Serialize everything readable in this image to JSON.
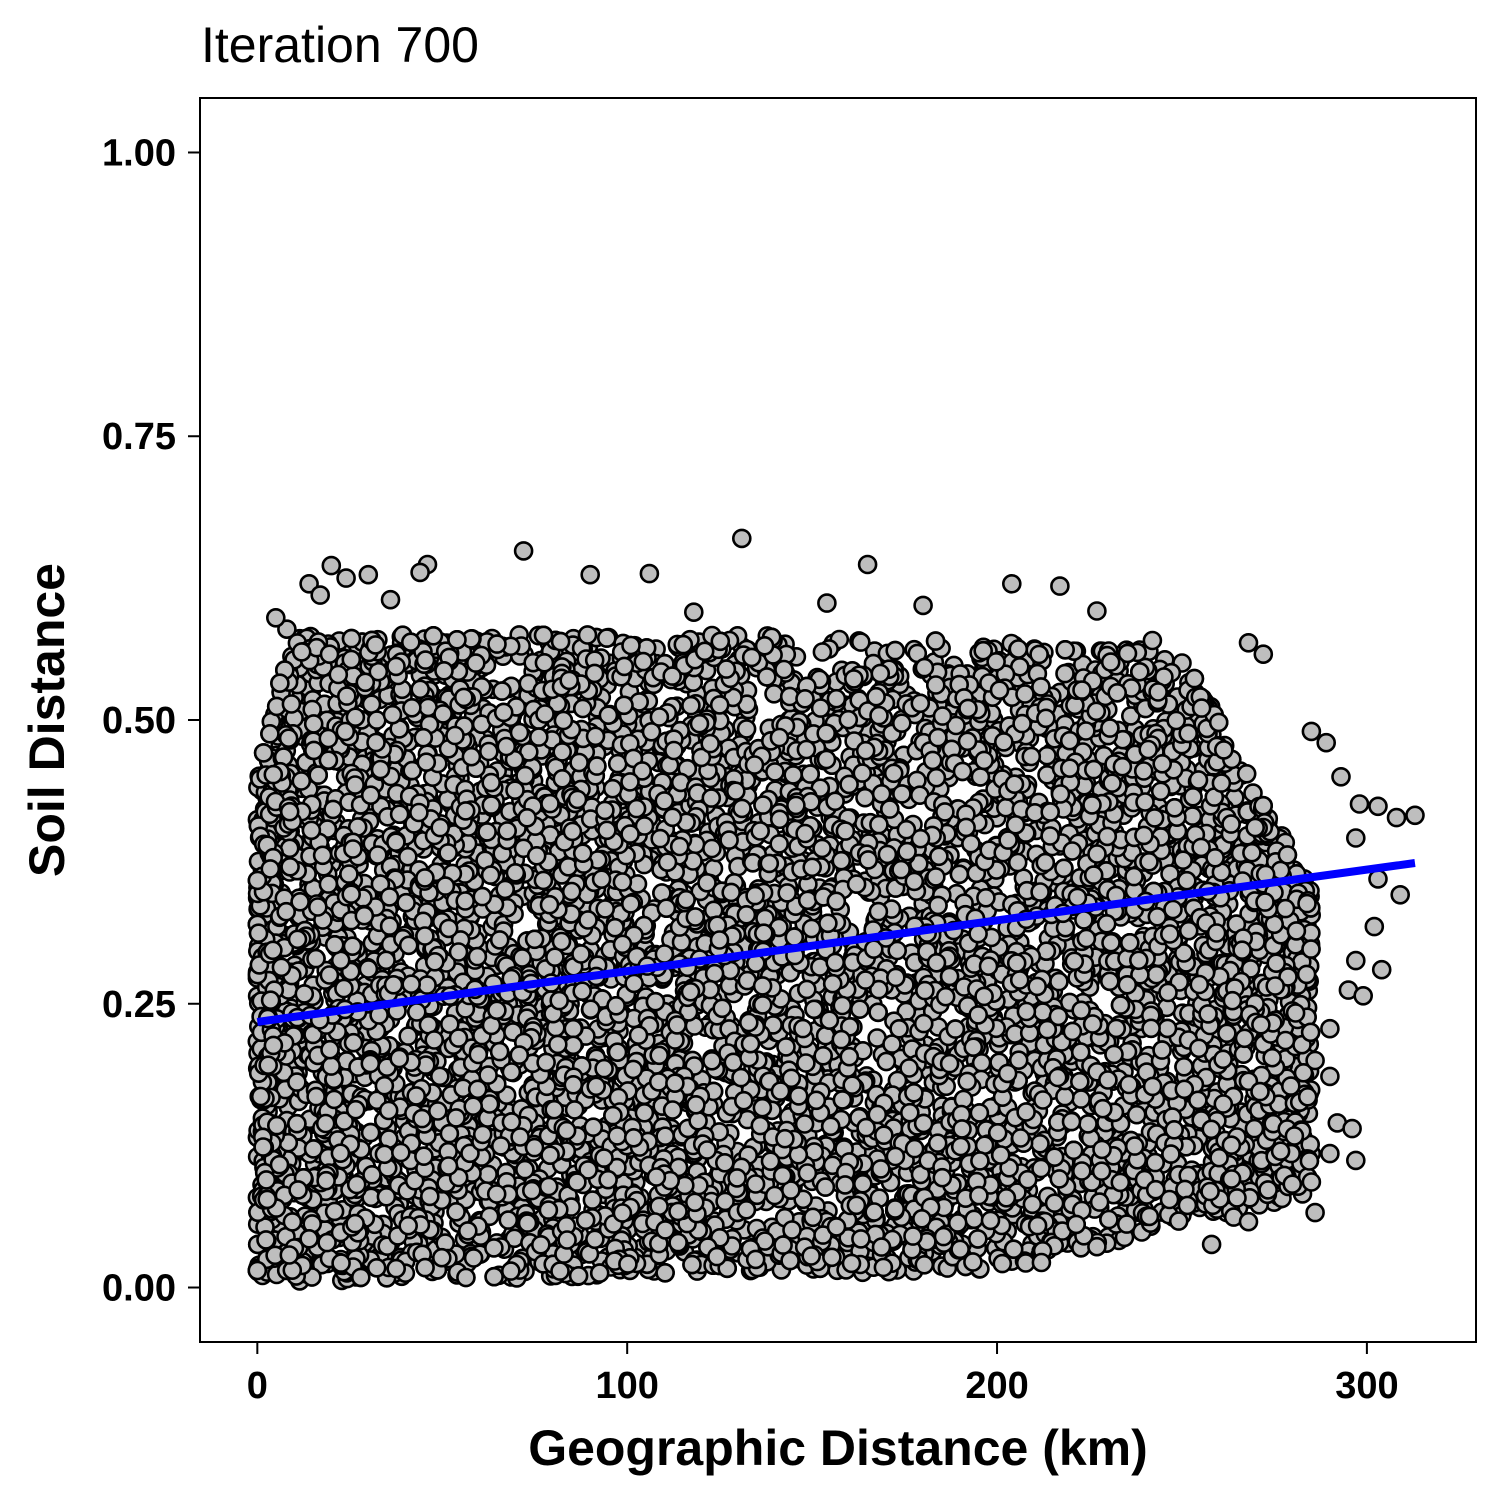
{
  "chart_data": {
    "type": "scatter",
    "title": "Iteration 700",
    "xlabel": "Geographic Distance (km)",
    "ylabel": "Soil Distance",
    "xlim": [
      -15.5,
      329.5
    ],
    "ylim": [
      -0.048,
      1.048
    ],
    "x_ticks": [
      0,
      100,
      200,
      300
    ],
    "x_tick_labels": [
      "0",
      "100",
      "200",
      "300"
    ],
    "y_ticks": [
      0,
      0.25,
      0.5,
      0.75,
      1.0
    ],
    "y_tick_labels": [
      "0.00",
      "0.25",
      "0.50",
      "0.75",
      "1.00"
    ],
    "grid": false,
    "legend": "none",
    "point_fill": "#bebebe",
    "point_stroke": "#000000",
    "line_color": "#0000ff",
    "series": [
      {
        "kind": "points",
        "description_points": [
          [
            131,
            0.66
          ],
          [
            165,
            0.637
          ],
          [
            20,
            0.636
          ],
          [
            72,
            0.649
          ],
          [
            46,
            0.637
          ],
          [
            30,
            0.628
          ],
          [
            44,
            0.63
          ],
          [
            90,
            0.628
          ],
          [
            106,
            0.629
          ],
          [
            204,
            0.62
          ],
          [
            217,
            0.618
          ],
          [
            180,
            0.601
          ],
          [
            154,
            0.603
          ],
          [
            227,
            0.596
          ],
          [
            118,
            0.595
          ],
          [
            242,
            0.57
          ],
          [
            268,
            0.568
          ],
          [
            272,
            0.558
          ],
          [
            285,
            0.49
          ],
          [
            289,
            0.48
          ],
          [
            293,
            0.45
          ],
          [
            298,
            0.426
          ],
          [
            303,
            0.424
          ],
          [
            313,
            0.416
          ],
          [
            308,
            0.414
          ],
          [
            297,
            0.396
          ],
          [
            303,
            0.36
          ],
          [
            309,
            0.346
          ],
          [
            302,
            0.318
          ],
          [
            297,
            0.288
          ],
          [
            304,
            0.28
          ],
          [
            295,
            0.262
          ],
          [
            299,
            0.257
          ],
          [
            290,
            0.228
          ],
          [
            286,
            0.2
          ],
          [
            290,
            0.186
          ],
          [
            284,
            0.168
          ],
          [
            292,
            0.145
          ],
          [
            296,
            0.14
          ],
          [
            290,
            0.118
          ],
          [
            297,
            0.112
          ],
          [
            285,
            0.093
          ],
          [
            286,
            0.066
          ],
          [
            264,
            0.062
          ],
          [
            268,
            0.058
          ],
          [
            258,
            0.038
          ],
          [
            227,
            0.036
          ],
          [
            212,
            0.022
          ],
          [
            8,
            0.58
          ],
          [
            5,
            0.59
          ],
          [
            12,
            0.56
          ],
          [
            14,
            0.62
          ],
          [
            17,
            0.61
          ],
          [
            36,
            0.606
          ],
          [
            24,
            0.625
          ]
        ]
      },
      {
        "kind": "line",
        "description": "linear fit",
        "x": [
          0,
          313
        ],
        "y": [
          0.234,
          0.374
        ]
      }
    ]
  }
}
